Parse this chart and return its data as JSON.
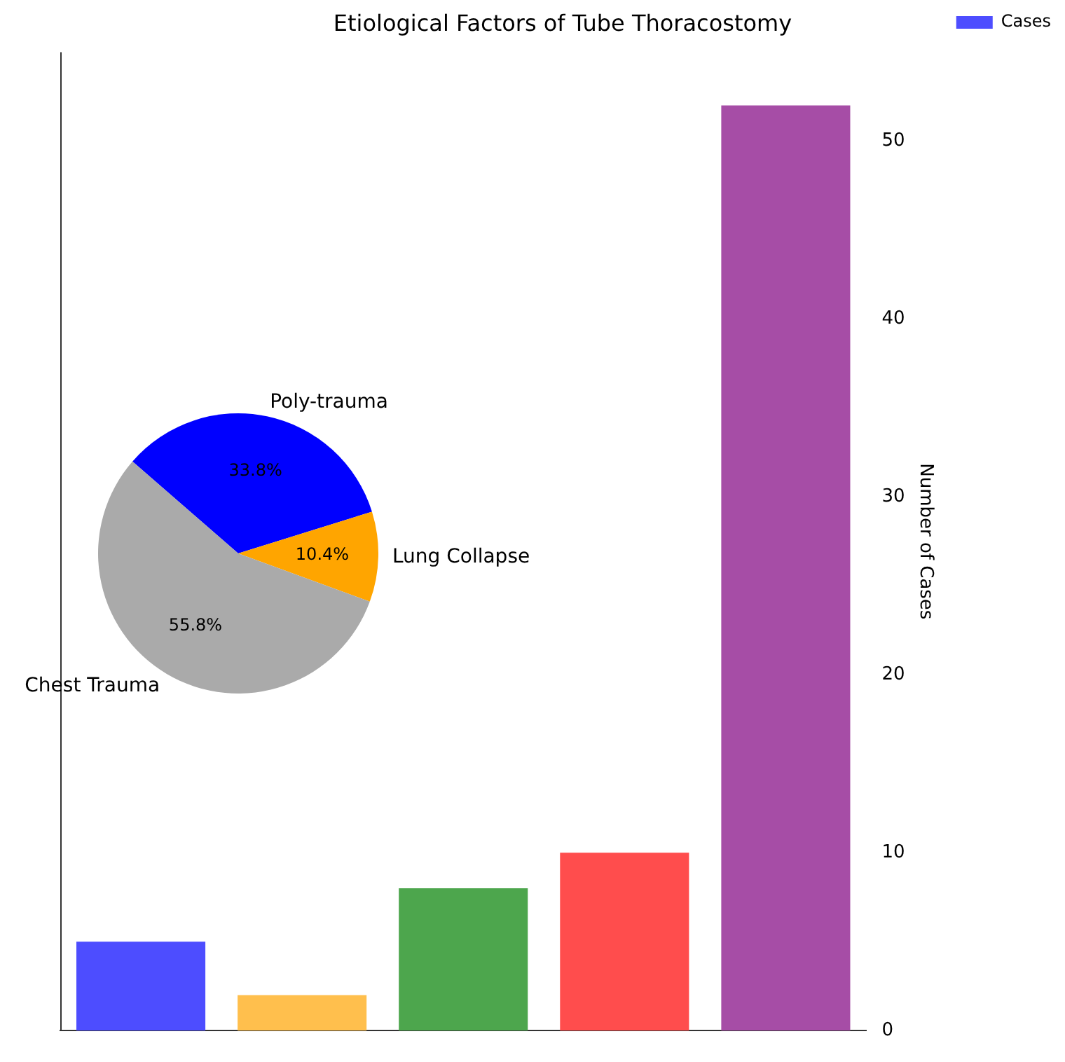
{
  "chart_data": [
    {
      "type": "bar",
      "title": "Etiological Factors of Tube Thoracostomy",
      "ylabel": "Number of Cases",
      "categories": [
        null,
        null,
        null,
        null,
        null
      ],
      "series": [
        {
          "name": "Cases",
          "color": "#4d4dff",
          "colors": [
            "#4d4dff",
            "#ffbf4d",
            "#4da64d",
            "#ff4d4d",
            "#a64da6"
          ],
          "values": [
            5,
            2,
            8,
            10,
            52
          ]
        }
      ],
      "ylim": [
        0,
        55
      ],
      "yticks": [
        0,
        10,
        20,
        30,
        40,
        50
      ],
      "grid": false,
      "legend": "top right"
    },
    {
      "type": "pie",
      "categories": [
        "Poly-trauma",
        "Lung Collapse",
        "Chest Trauma"
      ],
      "values": [
        33.8,
        10.4,
        55.8
      ],
      "colors": [
        "#0000ff",
        "#ffa500",
        "#aaaaaa"
      ],
      "value_labels": [
        "33.8%",
        "10.4%",
        "55.8%"
      ]
    }
  ]
}
